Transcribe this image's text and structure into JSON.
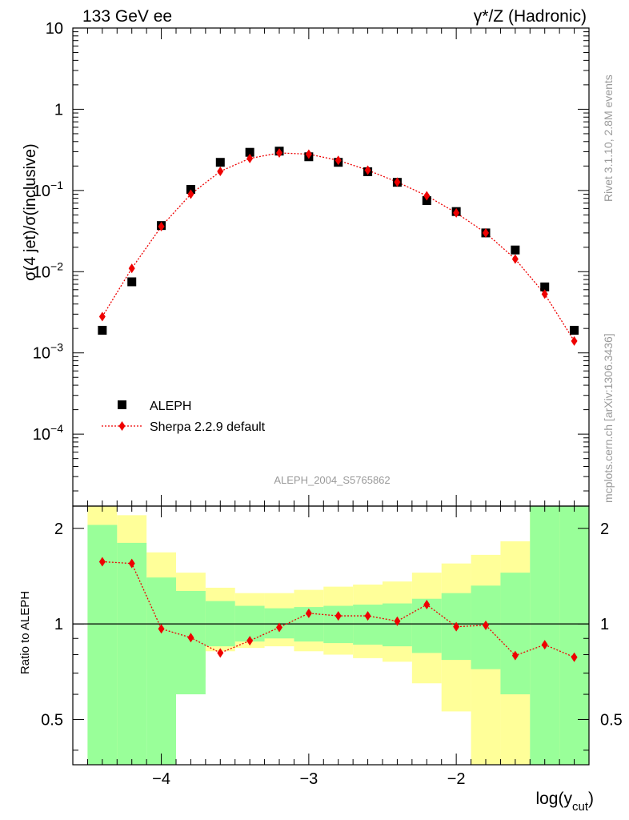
{
  "header": {
    "left": "133 GeV ee",
    "right": "γ*/Z (Hadronic)"
  },
  "side_labels": {
    "rivet": "Rivet 3.1.10,  2.8M events",
    "mcplots": "mcplots.cern.ch [arXiv:1306.3436]"
  },
  "watermark": "ALEPH_2004_S5765862",
  "chart_data": [
    {
      "type": "scatter",
      "panel": "main",
      "yscale": "log",
      "ylabel": "σ(4 jet)/σ(inclusive)",
      "ylim": [
        1.3e-05,
        10
      ],
      "xlim": [
        -4.6,
        -1.1
      ],
      "y_ticks": [
        {
          "value": 10,
          "label": "10"
        },
        {
          "value": 1,
          "label": "1"
        },
        {
          "value": 0.1,
          "base": "10",
          "exp": "−1"
        },
        {
          "value": 0.01,
          "base": "10",
          "exp": "−2"
        },
        {
          "value": 0.001,
          "base": "10",
          "exp": "−3"
        },
        {
          "value": 0.0001,
          "base": "10",
          "exp": "−4"
        }
      ],
      "legend_position": "lower-left",
      "series": [
        {
          "name": "ALEPH",
          "marker": "square",
          "color": "#000000",
          "x": [
            -4.4,
            -4.2,
            -4.0,
            -3.8,
            -3.6,
            -3.4,
            -3.2,
            -3.0,
            -2.8,
            -2.6,
            -2.4,
            -2.2,
            -2.0,
            -1.8,
            -1.6,
            -1.4,
            -1.2
          ],
          "y": [
            0.0019,
            0.0075,
            0.037,
            0.103,
            0.222,
            0.295,
            0.305,
            0.26,
            0.222,
            0.17,
            0.126,
            0.075,
            0.055,
            0.03,
            0.0185,
            0.0065,
            0.0019
          ]
        },
        {
          "name": "Sherpa 2.2.9 default",
          "marker": "diamond",
          "line": "dotted",
          "color": "#ee0000",
          "x": [
            -4.4,
            -4.2,
            -4.0,
            -3.8,
            -3.6,
            -3.4,
            -3.2,
            -3.0,
            -2.8,
            -2.6,
            -2.4,
            -2.2,
            -2.0,
            -1.8,
            -1.6,
            -1.4,
            -1.2
          ],
          "y": [
            0.0028,
            0.011,
            0.036,
            0.09,
            0.172,
            0.248,
            0.29,
            0.28,
            0.235,
            0.178,
            0.127,
            0.086,
            0.053,
            0.03,
            0.0143,
            0.0053,
            0.0014
          ]
        }
      ]
    },
    {
      "type": "line",
      "panel": "ratio",
      "yscale": "log",
      "ylabel": "Ratio to ALEPH",
      "xlabel": "log(y",
      "xlabel_sub": "cut",
      "xlabel_close": ")",
      "ylim": [
        0.36,
        2.35
      ],
      "xlim": [
        -4.6,
        -1.1
      ],
      "y_ticks": [
        {
          "value": 2,
          "label": "2"
        },
        {
          "value": 1,
          "label": "1"
        },
        {
          "value": 0.5,
          "label": "0.5"
        }
      ],
      "x_ticks": [
        {
          "value": -4,
          "label": "−4"
        },
        {
          "value": -3,
          "label": "−3"
        },
        {
          "value": -2,
          "label": "−2"
        }
      ],
      "bin_edges": [
        -4.5,
        -4.3,
        -4.1,
        -3.9,
        -3.7,
        -3.5,
        -3.3,
        -3.1,
        -2.9,
        -2.7,
        -2.5,
        -2.3,
        -2.1,
        -1.9,
        -1.7,
        -1.5,
        -1.3,
        -1.1
      ],
      "band_1sigma": {
        "color": "#99ff99",
        "low": [
          0.36,
          0.36,
          0.36,
          0.6,
          0.85,
          0.88,
          0.9,
          0.88,
          0.87,
          0.86,
          0.85,
          0.81,
          0.77,
          0.72,
          0.6,
          0.36,
          0.36
        ],
        "high": [
          2.05,
          1.8,
          1.4,
          1.27,
          1.18,
          1.14,
          1.12,
          1.13,
          1.14,
          1.15,
          1.16,
          1.2,
          1.25,
          1.32,
          1.45,
          2.35,
          2.35
        ]
      },
      "band_2sigma": {
        "color": "#ffff99",
        "low": [
          0.36,
          0.36,
          0.72,
          0.68,
          0.82,
          0.84,
          0.85,
          0.82,
          0.8,
          0.78,
          0.76,
          0.65,
          0.53,
          0.36,
          0.36,
          0.36,
          0.36
        ],
        "high": [
          2.35,
          2.2,
          1.68,
          1.45,
          1.3,
          1.25,
          1.25,
          1.28,
          1.31,
          1.33,
          1.36,
          1.45,
          1.55,
          1.65,
          1.82,
          2.35,
          2.35
        ]
      },
      "series": [
        {
          "name": "Sherpa 2.2.9 default",
          "marker": "diamond",
          "line": "dotted",
          "color": "#ee0000",
          "x": [
            -4.4,
            -4.2,
            -4.0,
            -3.8,
            -3.6,
            -3.4,
            -3.2,
            -3.0,
            -2.8,
            -2.6,
            -2.4,
            -2.2,
            -2.0,
            -1.8,
            -1.6,
            -1.4,
            -1.2
          ],
          "y": [
            1.57,
            1.55,
            0.965,
            0.905,
            0.81,
            0.885,
            0.975,
            1.08,
            1.06,
            1.06,
            1.02,
            1.15,
            0.98,
            0.99,
            0.795,
            0.86,
            0.785
          ]
        }
      ],
      "reference_line": 1
    }
  ]
}
